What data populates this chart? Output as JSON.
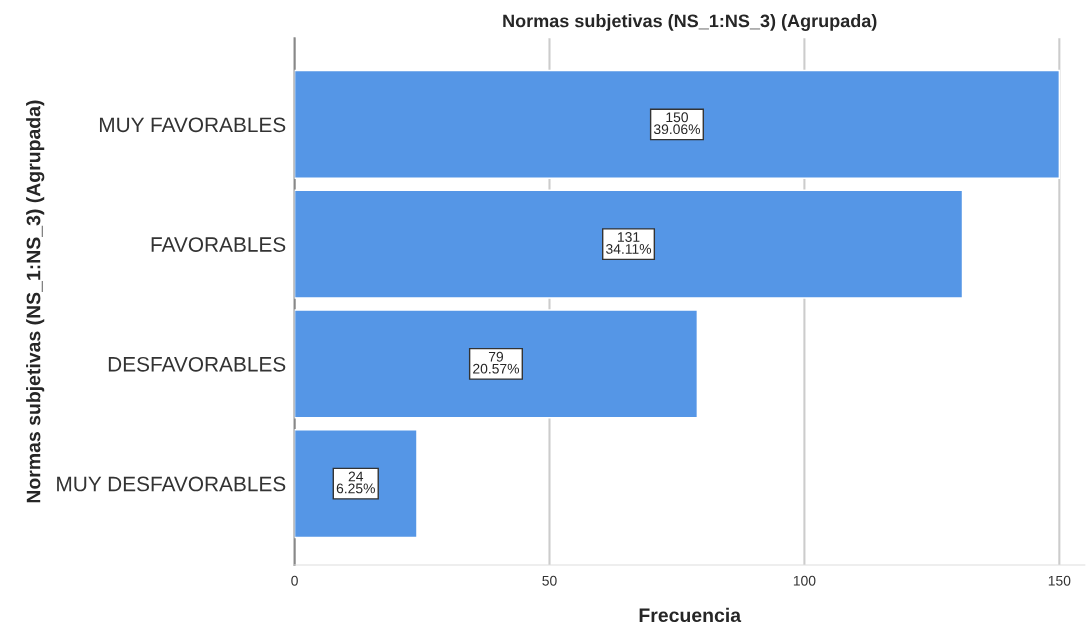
{
  "chart_data": {
    "type": "bar",
    "orientation": "horizontal",
    "title": "Normas subjetivas (NS_1:NS_3) (Agrupada)",
    "xlabel": "Frecuencia",
    "ylabel": "Normas subjetivas (NS_1:NS_3) (Agrupada)",
    "categories": [
      "MUY FAVORABLES",
      "FAVORABLES",
      "DESFAVORABLES",
      "MUY DESFAVORABLES"
    ],
    "values": [
      150,
      131,
      79,
      24
    ],
    "value_labels": [
      "150\n39.06%",
      "131\n34.11%",
      "79\n20.57%",
      "24\n6.25%"
    ],
    "color": "#5596e6",
    "xlim": [
      0,
      155
    ],
    "xticks": [
      0,
      50,
      100,
      150
    ],
    "grid": "x"
  }
}
